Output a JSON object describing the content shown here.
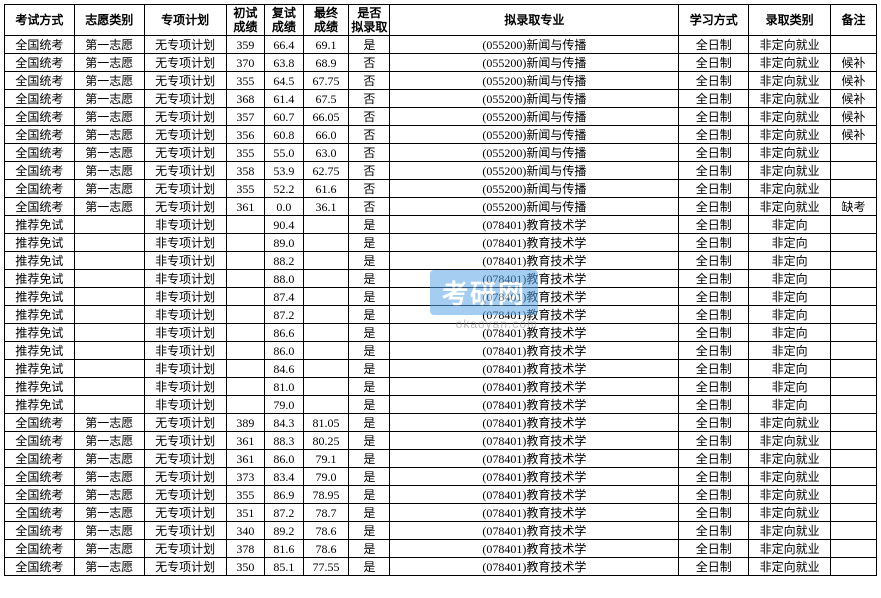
{
  "columns": [
    "考试方式",
    "志愿类别",
    "专项计划",
    "初试\n成绩",
    "复试\n成绩",
    "最终\n成绩",
    "是否\n拟录取",
    "拟录取专业",
    "学习方式",
    "录取类别",
    "备注"
  ],
  "col_widths": [
    "col-exam",
    "col-pref",
    "col-plan",
    "col-s1",
    "col-s2",
    "col-s3",
    "col-admit",
    "col-major",
    "col-mode",
    "col-cat",
    "col-note"
  ],
  "watermark": {
    "text": "考研网",
    "url": "okaoyan.com"
  },
  "rows": [
    [
      "全国统考",
      "第一志愿",
      "无专项计划",
      "359",
      "66.4",
      "69.1",
      "是",
      "(055200)新闻与传播",
      "全日制",
      "非定向就业",
      ""
    ],
    [
      "全国统考",
      "第一志愿",
      "无专项计划",
      "370",
      "63.8",
      "68.9",
      "否",
      "(055200)新闻与传播",
      "全日制",
      "非定向就业",
      "候补"
    ],
    [
      "全国统考",
      "第一志愿",
      "无专项计划",
      "355",
      "64.5",
      "67.75",
      "否",
      "(055200)新闻与传播",
      "全日制",
      "非定向就业",
      "候补"
    ],
    [
      "全国统考",
      "第一志愿",
      "无专项计划",
      "368",
      "61.4",
      "67.5",
      "否",
      "(055200)新闻与传播",
      "全日制",
      "非定向就业",
      "候补"
    ],
    [
      "全国统考",
      "第一志愿",
      "无专项计划",
      "357",
      "60.7",
      "66.05",
      "否",
      "(055200)新闻与传播",
      "全日制",
      "非定向就业",
      "候补"
    ],
    [
      "全国统考",
      "第一志愿",
      "无专项计划",
      "356",
      "60.8",
      "66.0",
      "否",
      "(055200)新闻与传播",
      "全日制",
      "非定向就业",
      "候补"
    ],
    [
      "全国统考",
      "第一志愿",
      "无专项计划",
      "355",
      "55.0",
      "63.0",
      "否",
      "(055200)新闻与传播",
      "全日制",
      "非定向就业",
      ""
    ],
    [
      "全国统考",
      "第一志愿",
      "无专项计划",
      "358",
      "53.9",
      "62.75",
      "否",
      "(055200)新闻与传播",
      "全日制",
      "非定向就业",
      ""
    ],
    [
      "全国统考",
      "第一志愿",
      "无专项计划",
      "355",
      "52.2",
      "61.6",
      "否",
      "(055200)新闻与传播",
      "全日制",
      "非定向就业",
      ""
    ],
    [
      "全国统考",
      "第一志愿",
      "无专项计划",
      "361",
      "0.0",
      "36.1",
      "否",
      "(055200)新闻与传播",
      "全日制",
      "非定向就业",
      "缺考"
    ],
    [
      "推荐免试",
      "",
      "非专项计划",
      "",
      "90.4",
      "",
      "是",
      "(078401)教育技术学",
      "全日制",
      "非定向",
      ""
    ],
    [
      "推荐免试",
      "",
      "非专项计划",
      "",
      "89.0",
      "",
      "是",
      "(078401)教育技术学",
      "全日制",
      "非定向",
      ""
    ],
    [
      "推荐免试",
      "",
      "非专项计划",
      "",
      "88.2",
      "",
      "是",
      "(078401)教育技术学",
      "全日制",
      "非定向",
      ""
    ],
    [
      "推荐免试",
      "",
      "非专项计划",
      "",
      "88.0",
      "",
      "是",
      "(078401)教育技术学",
      "全日制",
      "非定向",
      ""
    ],
    [
      "推荐免试",
      "",
      "非专项计划",
      "",
      "87.4",
      "",
      "是",
      "(078401)教育技术学",
      "全日制",
      "非定向",
      ""
    ],
    [
      "推荐免试",
      "",
      "非专项计划",
      "",
      "87.2",
      "",
      "是",
      "(078401)教育技术学",
      "全日制",
      "非定向",
      ""
    ],
    [
      "推荐免试",
      "",
      "非专项计划",
      "",
      "86.6",
      "",
      "是",
      "(078401)教育技术学",
      "全日制",
      "非定向",
      ""
    ],
    [
      "推荐免试",
      "",
      "非专项计划",
      "",
      "86.0",
      "",
      "是",
      "(078401)教育技术学",
      "全日制",
      "非定向",
      ""
    ],
    [
      "推荐免试",
      "",
      "非专项计划",
      "",
      "84.6",
      "",
      "是",
      "(078401)教育技术学",
      "全日制",
      "非定向",
      ""
    ],
    [
      "推荐免试",
      "",
      "非专项计划",
      "",
      "81.0",
      "",
      "是",
      "(078401)教育技术学",
      "全日制",
      "非定向",
      ""
    ],
    [
      "推荐免试",
      "",
      "非专项计划",
      "",
      "79.0",
      "",
      "是",
      "(078401)教育技术学",
      "全日制",
      "非定向",
      ""
    ],
    [
      "全国统考",
      "第一志愿",
      "无专项计划",
      "389",
      "84.3",
      "81.05",
      "是",
      "(078401)教育技术学",
      "全日制",
      "非定向就业",
      ""
    ],
    [
      "全国统考",
      "第一志愿",
      "无专项计划",
      "361",
      "88.3",
      "80.25",
      "是",
      "(078401)教育技术学",
      "全日制",
      "非定向就业",
      ""
    ],
    [
      "全国统考",
      "第一志愿",
      "无专项计划",
      "361",
      "86.0",
      "79.1",
      "是",
      "(078401)教育技术学",
      "全日制",
      "非定向就业",
      ""
    ],
    [
      "全国统考",
      "第一志愿",
      "无专项计划",
      "373",
      "83.4",
      "79.0",
      "是",
      "(078401)教育技术学",
      "全日制",
      "非定向就业",
      ""
    ],
    [
      "全国统考",
      "第一志愿",
      "无专项计划",
      "355",
      "86.9",
      "78.95",
      "是",
      "(078401)教育技术学",
      "全日制",
      "非定向就业",
      ""
    ],
    [
      "全国统考",
      "第一志愿",
      "无专项计划",
      "351",
      "87.2",
      "78.7",
      "是",
      "(078401)教育技术学",
      "全日制",
      "非定向就业",
      ""
    ],
    [
      "全国统考",
      "第一志愿",
      "无专项计划",
      "340",
      "89.2",
      "78.6",
      "是",
      "(078401)教育技术学",
      "全日制",
      "非定向就业",
      ""
    ],
    [
      "全国统考",
      "第一志愿",
      "无专项计划",
      "378",
      "81.6",
      "78.6",
      "是",
      "(078401)教育技术学",
      "全日制",
      "非定向就业",
      ""
    ],
    [
      "全国统考",
      "第一志愿",
      "无专项计划",
      "350",
      "85.1",
      "77.55",
      "是",
      "(078401)教育技术学",
      "全日制",
      "非定向就业",
      ""
    ]
  ]
}
